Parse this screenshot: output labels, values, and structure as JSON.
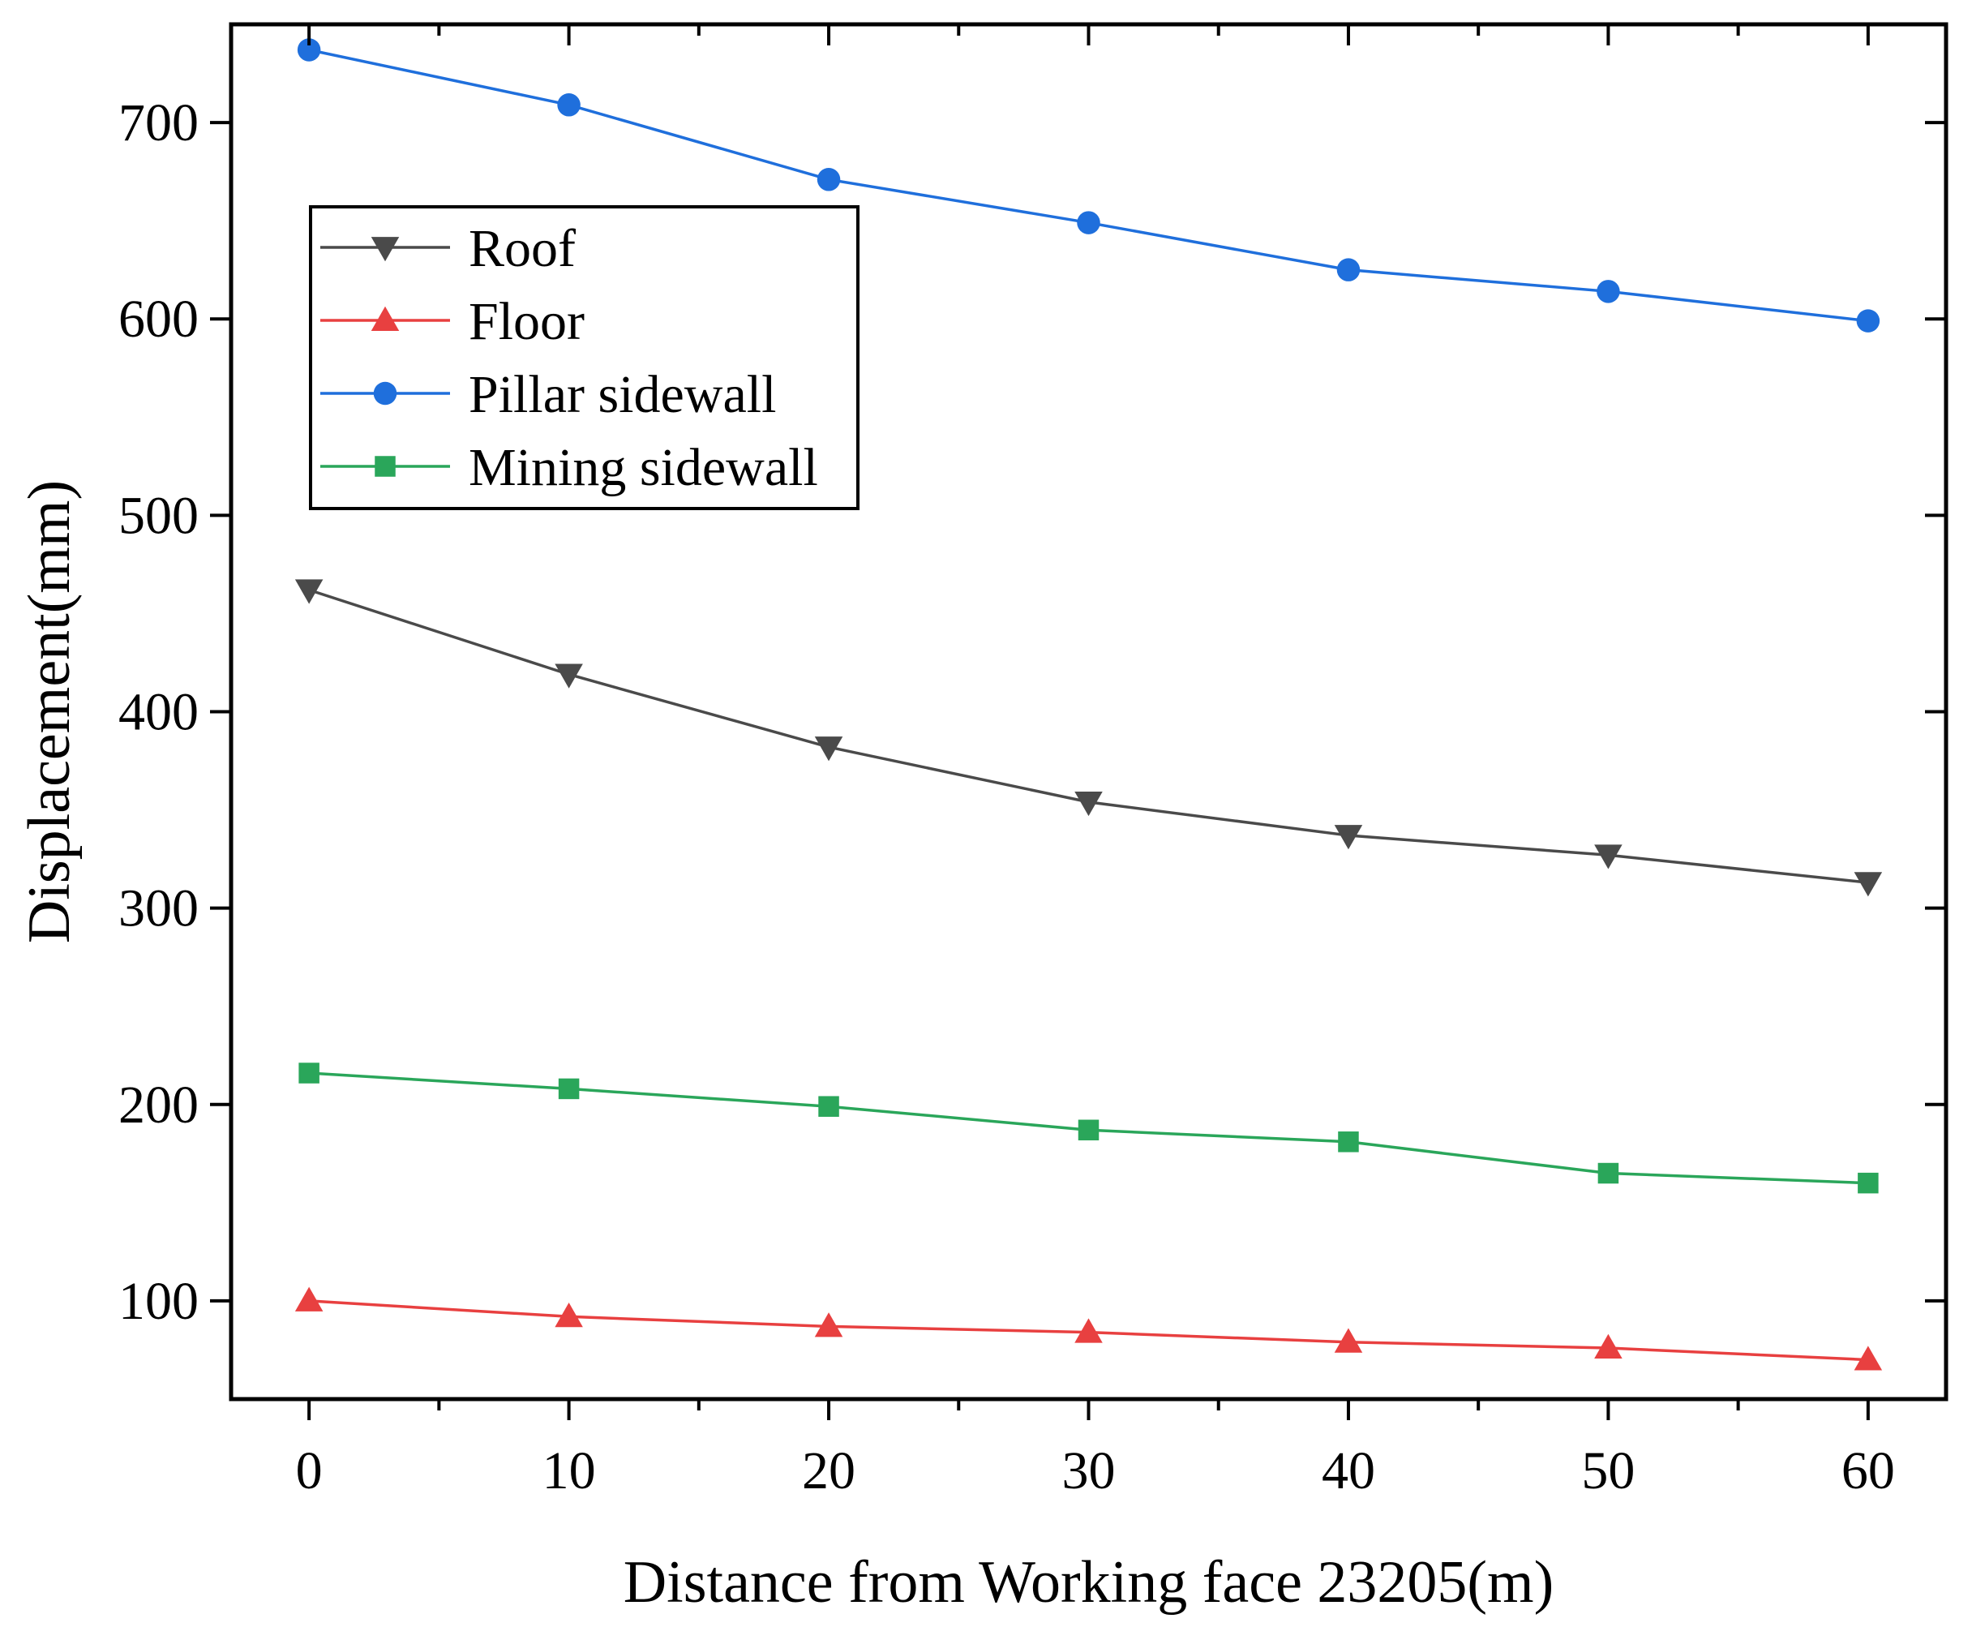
{
  "chart_data": {
    "type": "line",
    "title": "",
    "xlabel": "Distance from Working face 23205(m)",
    "ylabel": "Displacement(mm)",
    "x": [
      0,
      10,
      20,
      30,
      40,
      50,
      60
    ],
    "xlim": [
      -3,
      63
    ],
    "ylim": [
      50,
      750
    ],
    "xticks": [
      0,
      10,
      20,
      30,
      40,
      50,
      60
    ],
    "yticks": [
      100,
      200,
      300,
      400,
      500,
      600,
      700
    ],
    "xtick_labels": [
      "0",
      "10",
      "20",
      "30",
      "40",
      "50",
      "60"
    ],
    "ytick_labels": [
      "100",
      "200",
      "300",
      "400",
      "500",
      "600",
      "700"
    ],
    "legend_position": "top-left",
    "grid": false,
    "series": [
      {
        "name": "Roof",
        "marker": "triangle-down",
        "color": "#4a4a4a",
        "values": [
          462,
          419,
          382,
          354,
          337,
          327,
          313
        ]
      },
      {
        "name": "Floor",
        "marker": "triangle-up",
        "color": "#e84040",
        "values": [
          100,
          92,
          87,
          84,
          79,
          76,
          70
        ]
      },
      {
        "name": "Pillar sidewall",
        "marker": "circle",
        "color": "#1f6fdc",
        "values": [
          737,
          709,
          671,
          649,
          625,
          614,
          599
        ]
      },
      {
        "name": "Mining sidewall",
        "marker": "square",
        "color": "#2aa65a",
        "values": [
          216,
          208,
          199,
          187,
          181,
          165,
          160
        ]
      }
    ]
  }
}
